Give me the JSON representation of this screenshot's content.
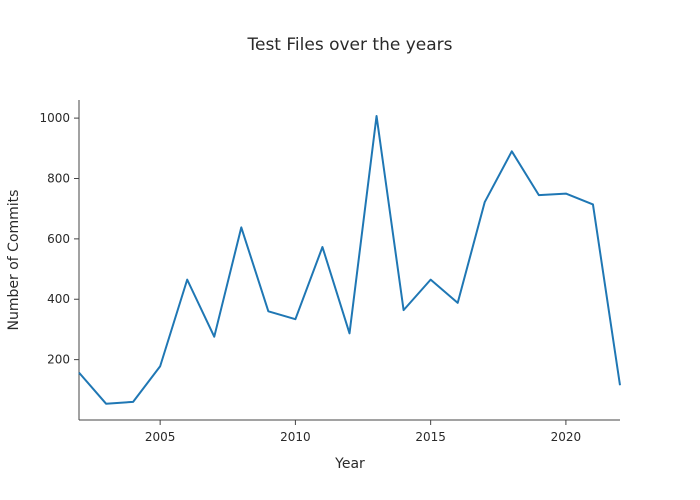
{
  "chart_data": {
    "type": "line",
    "title": "Test Files over the years",
    "xlabel": "Year",
    "ylabel": "Number of Commits",
    "xlim": [
      2002,
      2022
    ],
    "ylim": [
      0,
      1060
    ],
    "xticks": [
      2005,
      2010,
      2015,
      2020
    ],
    "yticks": [
      200,
      400,
      600,
      800,
      1000
    ],
    "grid": false,
    "legend": "none",
    "line_color": "#1f77b4",
    "series": [
      {
        "x": [
          2002,
          2003,
          2004,
          2005,
          2006,
          2007,
          2008,
          2009,
          2010,
          2011,
          2012,
          2013,
          2014,
          2015,
          2016,
          2017,
          2018,
          2019,
          2020,
          2021,
          2022
        ],
        "values": [
          157,
          54,
          60,
          178,
          465,
          276,
          638,
          360,
          334,
          573,
          287,
          1007,
          364,
          465,
          388,
          722,
          890,
          745,
          750,
          714,
          115
        ]
      }
    ]
  }
}
